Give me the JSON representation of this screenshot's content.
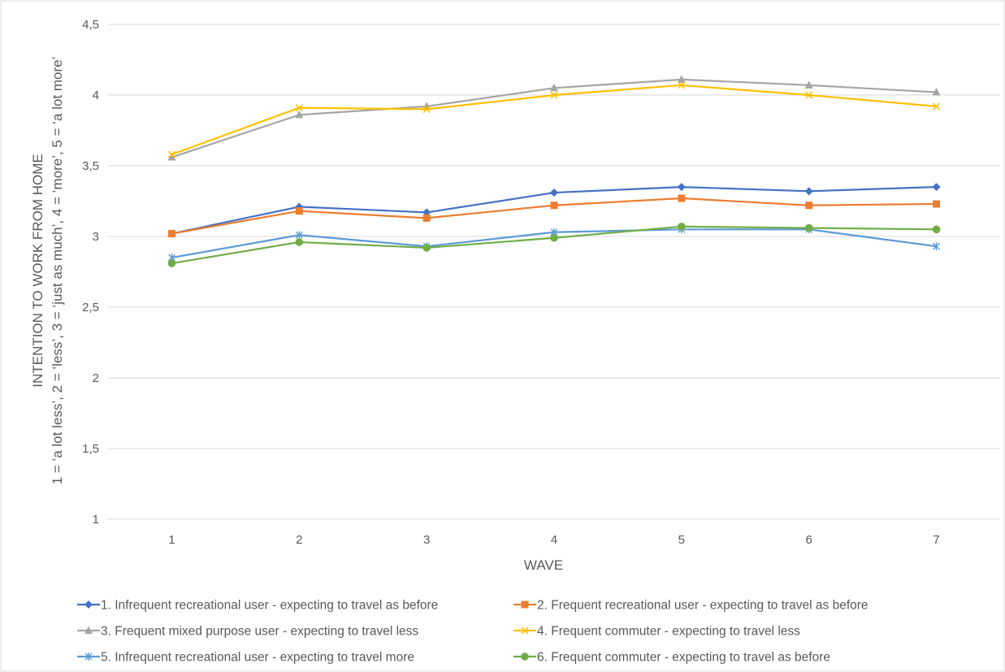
{
  "chart_data": {
    "type": "line",
    "title": "",
    "xlabel": "WAVE",
    "ylabel_line1": "1 = ‘a lot less’, 2 = ‘less’, 3 = ‘just as much’, 4 = ‘more’, 5 = ‘a lot more’",
    "ylabel_line2": "INTENTION TO WORK FROM HOME",
    "categories": [
      "1",
      "2",
      "3",
      "4",
      "5",
      "6",
      "7"
    ],
    "ylim": [
      1,
      4.5
    ],
    "yticks": [
      "1",
      "1,5",
      "2",
      "2,5",
      "3",
      "3,5",
      "4",
      "4,5"
    ],
    "ytick_values": [
      1,
      1.5,
      2,
      2.5,
      3,
      3.5,
      4,
      4.5
    ],
    "grid": true,
    "legend_position": "bottom",
    "series": [
      {
        "name": "1. Infrequent recreational user - expecting to travel as before",
        "color": "#4472c4",
        "marker": "diamond",
        "values": [
          3.02,
          3.21,
          3.17,
          3.31,
          3.35,
          3.32,
          3.35
        ]
      },
      {
        "name": "2. Frequent recreational user - expecting to travel as before",
        "color": "#ed7d31",
        "marker": "square",
        "values": [
          3.02,
          3.18,
          3.13,
          3.22,
          3.27,
          3.22,
          3.23
        ]
      },
      {
        "name": "3. Frequent mixed purpose user - expecting to travel less",
        "color": "#a5a5a5",
        "marker": "triangle",
        "values": [
          3.56,
          3.86,
          3.92,
          4.05,
          4.11,
          4.07,
          4.02
        ]
      },
      {
        "name": "4. Frequent commuter - expecting to travel less",
        "color": "#ffc000",
        "marker": "x",
        "values": [
          3.58,
          3.91,
          3.9,
          4.0,
          4.07,
          4.0,
          3.92
        ]
      },
      {
        "name": "5. Infrequent recreational user - expecting to travel more",
        "color": "#5b9bd5",
        "marker": "star",
        "values": [
          2.85,
          3.01,
          2.93,
          3.03,
          3.05,
          3.05,
          2.93
        ]
      },
      {
        "name": "6. Frequent commuter - expecting to travel as before",
        "color": "#70ad47",
        "marker": "circle",
        "values": [
          2.81,
          2.96,
          2.92,
          2.99,
          3.07,
          3.06,
          3.05
        ]
      }
    ]
  }
}
